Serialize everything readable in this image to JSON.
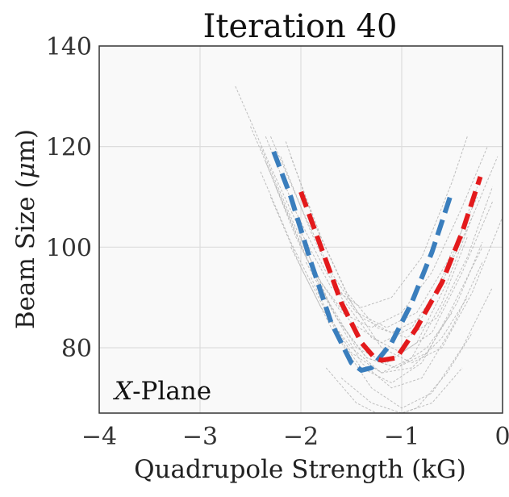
{
  "chart_data": {
    "type": "line",
    "title": "Iteration 40",
    "xlabel": "Quadrupole Strength (kG)",
    "ylabel_prefix": "Beam Size (",
    "ylabel_mu": "μ",
    "ylabel_suffix": "m)",
    "xlim": [
      -4,
      0
    ],
    "ylim": [
      67,
      140
    ],
    "xticks": [
      -4,
      -3,
      -2,
      -1,
      0
    ],
    "xtick_labels": [
      "−4",
      "−3",
      "−2",
      "−1",
      "0"
    ],
    "yticks": [
      80,
      100,
      120,
      140
    ],
    "ytick_labels": [
      "80",
      "100",
      "120",
      "140"
    ],
    "grid": true,
    "annotation_var": "X",
    "annotation_text": "-Plane",
    "colors": {
      "blue": "#3a7ebd",
      "red": "#e31a1c",
      "samples": "#b8b8b8",
      "grid": "#dddddd",
      "plot_bg": "#f9f9f9",
      "frame": "#333333"
    },
    "series": [
      {
        "name": "measurement-blue",
        "style": "dashed-thick",
        "x": [
          -2.27,
          -2.1,
          -1.9,
          -1.7,
          -1.5,
          -1.4,
          -1.3,
          -1.1,
          -0.9,
          -0.7,
          -0.52
        ],
        "y": [
          119,
          110,
          97,
          85,
          77,
          75.5,
          76,
          81,
          89,
          99,
          110
        ]
      },
      {
        "name": "measurement-red",
        "style": "dashed-thick",
        "x": [
          -2.0,
          -1.8,
          -1.6,
          -1.4,
          -1.27,
          -1.2,
          -1.05,
          -0.85,
          -0.6,
          -0.4,
          -0.22
        ],
        "y": [
          111,
          100,
          89,
          81,
          78,
          77.5,
          78,
          84,
          93,
          103,
          114
        ]
      },
      {
        "name": "sample-1",
        "style": "thin-dashed",
        "x": [
          -2.65,
          -2.3,
          -2.0,
          -1.7,
          -1.4,
          -1.1,
          -0.8,
          -0.5,
          -0.35
        ],
        "y": [
          132,
          116,
          103,
          92,
          88,
          90,
          98,
          113,
          122
        ]
      },
      {
        "name": "sample-2",
        "style": "thin-dashed",
        "x": [
          -2.5,
          -2.2,
          -1.9,
          -1.6,
          -1.3,
          -1.0,
          -0.7,
          -0.4,
          -0.15
        ],
        "y": [
          124,
          110,
          96,
          87,
          84,
          87,
          95,
          108,
          120
        ]
      },
      {
        "name": "sample-3",
        "style": "thin-dashed",
        "x": [
          -2.3,
          -2.0,
          -1.7,
          -1.4,
          -1.1,
          -0.8,
          -0.5,
          -0.25
        ],
        "y": [
          122,
          108,
          95,
          86,
          83,
          86,
          98,
          112
        ]
      },
      {
        "name": "sample-4",
        "style": "thin-dashed",
        "x": [
          -2.4,
          -2.1,
          -1.8,
          -1.5,
          -1.2,
          -0.9,
          -0.6,
          -0.3,
          -0.05
        ],
        "y": [
          120,
          106,
          93,
          85,
          81,
          84,
          93,
          106,
          118
        ]
      },
      {
        "name": "sample-5",
        "style": "thin-dashed",
        "x": [
          -2.2,
          -1.9,
          -1.6,
          -1.3,
          -1.0,
          -0.7,
          -0.4,
          -0.1
        ],
        "y": [
          118,
          103,
          90,
          82,
          79,
          83,
          95,
          109
        ]
      },
      {
        "name": "sample-6",
        "style": "thin-dashed",
        "x": [
          -2.35,
          -2.05,
          -1.75,
          -1.45,
          -1.15,
          -0.85,
          -0.55,
          -0.3
        ],
        "y": [
          117,
          102,
          90,
          80,
          77,
          81,
          93,
          106
        ]
      },
      {
        "name": "sample-7",
        "style": "thin-dashed",
        "x": [
          -2.15,
          -1.85,
          -1.55,
          -1.25,
          -0.95,
          -0.65,
          -0.35,
          -0.1
        ],
        "y": [
          121,
          104,
          91,
          84,
          82,
          86,
          98,
          112
        ]
      },
      {
        "name": "sample-8",
        "style": "thin-dashed",
        "x": [
          -2.4,
          -2.1,
          -1.8,
          -1.5,
          -1.2,
          -0.9,
          -0.6,
          -0.35
        ],
        "y": [
          115,
          101,
          89,
          79,
          75,
          78,
          89,
          102
        ]
      },
      {
        "name": "sample-9",
        "style": "thin-dashed",
        "x": [
          -2.25,
          -1.95,
          -1.65,
          -1.35,
          -1.05,
          -0.75,
          -0.45,
          -0.2
        ],
        "y": [
          112,
          98,
          86,
          78,
          76,
          79,
          89,
          101
        ]
      },
      {
        "name": "sample-10",
        "style": "thin-dashed",
        "x": [
          -2.1,
          -1.8,
          -1.5,
          -1.2,
          -0.9,
          -0.6,
          -0.3,
          0.0
        ],
        "y": [
          118,
          102,
          89,
          80,
          77,
          80,
          91,
          106
        ]
      },
      {
        "name": "sample-11",
        "style": "thin-dashed",
        "x": [
          -2.3,
          -2.0,
          -1.7,
          -1.4,
          -1.1,
          -0.8,
          -0.5,
          -0.2
        ],
        "y": [
          110,
          96,
          84,
          76,
          73,
          77,
          88,
          100
        ]
      },
      {
        "name": "sample-12",
        "style": "thin-dashed",
        "x": [
          -2.0,
          -1.7,
          -1.4,
          -1.1,
          -0.8,
          -0.5,
          -0.2
        ],
        "y": [
          102,
          88,
          77,
          72,
          74,
          84,
          97
        ]
      },
      {
        "name": "sample-13",
        "style": "thin-dashed",
        "x": [
          -1.9,
          -1.6,
          -1.3,
          -1.0,
          -0.7,
          -0.4,
          -0.1
        ],
        "y": [
          94,
          81,
          72,
          68,
          71,
          80,
          92
        ]
      },
      {
        "name": "sample-14",
        "style": "thin-dashed",
        "x": [
          -1.75,
          -1.45,
          -1.15,
          -0.85,
          -0.55,
          -0.3
        ],
        "y": [
          76,
          69,
          66,
          68,
          75,
          83
        ]
      },
      {
        "name": "sample-15",
        "style": "thin-dashed",
        "x": [
          -1.6,
          -1.3,
          -1.0,
          -0.7,
          -0.4
        ],
        "y": [
          74,
          69,
          67,
          69,
          76
        ]
      },
      {
        "name": "sample-16",
        "style": "thin-dashed",
        "x": [
          -2.1,
          -1.8,
          -1.5,
          -1.2,
          -0.9,
          -0.6,
          -0.35
        ],
        "y": [
          100,
          88,
          80,
          75,
          76,
          82,
          90
        ]
      },
      {
        "name": "sample-17",
        "style": "thin-dashed",
        "x": [
          -1.95,
          -1.65,
          -1.35,
          -1.05,
          -0.75,
          -0.5
        ],
        "y": [
          97,
          86,
          78,
          76,
          80,
          87
        ]
      },
      {
        "name": "sample-18",
        "style": "thin-dashed",
        "x": [
          -2.35,
          -2.05,
          -1.75,
          -1.45,
          -1.15,
          -0.85,
          -0.55,
          -0.25
        ],
        "y": [
          122,
          107,
          95,
          87,
          84,
          87,
          97,
          110
        ]
      }
    ]
  }
}
